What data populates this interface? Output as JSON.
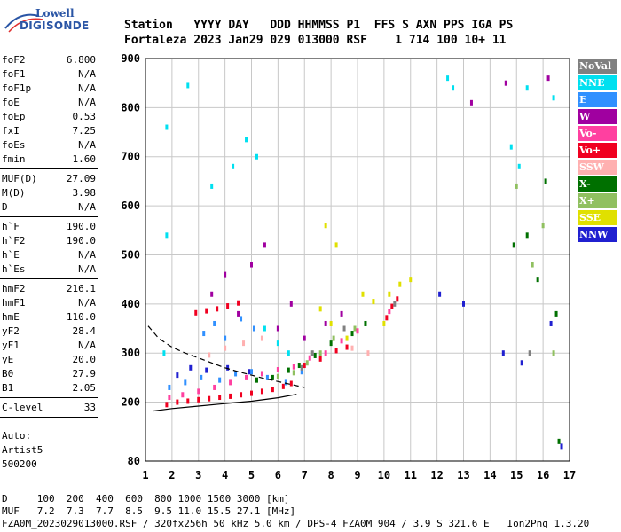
{
  "logo": {
    "line1": "Lowell",
    "line2": "DIGISONDE"
  },
  "header": {
    "line1": "Station   YYYY DAY   DDD HHMMSS P1  FFS S AXN PPS IGA PS",
    "line2": "Fortaleza 2023 Jan29 029 013000 RSF    1 714 100 10+ 11"
  },
  "params_groups": [
    [
      {
        "label": "foF2",
        "value": "6.800"
      },
      {
        "label": "foF1",
        "value": "N/A"
      },
      {
        "label": "foF1p",
        "value": "N/A"
      },
      {
        "label": "foE",
        "value": "N/A"
      },
      {
        "label": "foEp",
        "value": "0.53"
      },
      {
        "label": "fxI",
        "value": "7.25"
      },
      {
        "label": "foEs",
        "value": "N/A"
      },
      {
        "label": "fmin",
        "value": "1.60"
      }
    ],
    [
      {
        "label": "MUF(D)",
        "value": "27.09"
      },
      {
        "label": "M(D)",
        "value": "3.98"
      },
      {
        "label": "D",
        "value": "N/A"
      }
    ],
    [
      {
        "label": "h`F",
        "value": "190.0"
      },
      {
        "label": "h`F2",
        "value": "190.0"
      },
      {
        "label": "h`E",
        "value": "N/A"
      },
      {
        "label": "h`Es",
        "value": "N/A"
      }
    ],
    [
      {
        "label": "hmF2",
        "value": "216.1"
      },
      {
        "label": "hmF1",
        "value": "N/A"
      },
      {
        "label": "hmE",
        "value": "110.0"
      },
      {
        "label": "yF2",
        "value": "28.4"
      },
      {
        "label": "yF1",
        "value": "N/A"
      },
      {
        "label": "yE",
        "value": "20.0"
      },
      {
        "label": "B0",
        "value": "27.9"
      },
      {
        "label": "B1",
        "value": "2.05"
      }
    ],
    [
      {
        "label": "C-level",
        "value": "33"
      }
    ]
  ],
  "auto": {
    "line1": "Auto:",
    "line2": "Artist5",
    "line3": "500200"
  },
  "legend": [
    {
      "label": "NoVal",
      "color": "#808080"
    },
    {
      "label": "NNE",
      "color": "#00e0f0"
    },
    {
      "label": "E",
      "color": "#3090ff"
    },
    {
      "label": "W",
      "color": "#a000a0"
    },
    {
      "label": "Vo-",
      "color": "#ff40a0"
    },
    {
      "label": "Vo+",
      "color": "#f00020"
    },
    {
      "label": "SSW",
      "color": "#ffb0b0"
    },
    {
      "label": "X-",
      "color": "#007000"
    },
    {
      "label": "X+",
      "color": "#90c060"
    },
    {
      "label": "SSE",
      "color": "#e0e000"
    },
    {
      "label": "NNW",
      "color": "#2020d0"
    }
  ],
  "footer": {
    "line1": "D     100  200  400  600  800 1000 1500 3000 [km]",
    "line2": "MUF   7.2  7.3  7.7  8.5  9.5 11.0 15.5 27.1 [MHz]",
    "line3": "FZA0M_2023029013000.RSF / 320fx256h 50 kHz 5.0 km / DPS-4 FZA0M 904 / 3.9 S 321.6 E   Ion2Png 1.3.20"
  },
  "chart_data": {
    "type": "scatter",
    "title": "",
    "xlabel": "",
    "ylabel": "",
    "xlim": [
      1,
      17
    ],
    "ylim": [
      80,
      900
    ],
    "xticks": [
      1,
      2,
      3,
      4,
      5,
      6,
      7,
      8,
      9,
      10,
      11,
      12,
      13,
      14,
      15,
      16,
      17
    ],
    "yticks": [
      80,
      200,
      300,
      400,
      500,
      600,
      700,
      800,
      900
    ],
    "grid": true,
    "legend_position": "right",
    "series": [
      {
        "name": "Vo+",
        "color": "#f00020",
        "points": [
          [
            1.8,
            195
          ],
          [
            2.2,
            200
          ],
          [
            2.6,
            202
          ],
          [
            3.0,
            205
          ],
          [
            3.4,
            207
          ],
          [
            3.8,
            210
          ],
          [
            4.2,
            212
          ],
          [
            4.6,
            215
          ],
          [
            5.0,
            218
          ],
          [
            5.4,
            222
          ],
          [
            5.8,
            226
          ],
          [
            6.2,
            232
          ],
          [
            6.5,
            238
          ],
          [
            2.9,
            382
          ],
          [
            3.3,
            386
          ],
          [
            3.7,
            390
          ],
          [
            4.1,
            396
          ],
          [
            4.5,
            402
          ],
          [
            7.0,
            275
          ],
          [
            7.6,
            288
          ],
          [
            8.2,
            305
          ],
          [
            8.6,
            312
          ],
          [
            10.1,
            372
          ],
          [
            10.3,
            395
          ],
          [
            10.5,
            410
          ]
        ]
      },
      {
        "name": "Vo-",
        "color": "#ff40a0",
        "points": [
          [
            1.9,
            210
          ],
          [
            2.4,
            215
          ],
          [
            3.0,
            222
          ],
          [
            3.6,
            230
          ],
          [
            4.2,
            240
          ],
          [
            4.8,
            250
          ],
          [
            5.4,
            258
          ],
          [
            6.0,
            266
          ],
          [
            6.6,
            272
          ],
          [
            7.2,
            290
          ],
          [
            7.8,
            300
          ],
          [
            8.4,
            325
          ],
          [
            9.0,
            345
          ],
          [
            10.2,
            385
          ]
        ]
      },
      {
        "name": "E",
        "color": "#3090ff",
        "points": [
          [
            1.9,
            230
          ],
          [
            2.5,
            240
          ],
          [
            3.1,
            250
          ],
          [
            3.8,
            245
          ],
          [
            4.4,
            258
          ],
          [
            5.0,
            262
          ],
          [
            5.6,
            250
          ],
          [
            6.3,
            240
          ],
          [
            6.9,
            262
          ],
          [
            3.2,
            340
          ],
          [
            3.6,
            360
          ],
          [
            4.0,
            330
          ],
          [
            4.6,
            370
          ],
          [
            5.1,
            350
          ]
        ]
      },
      {
        "name": "NNE",
        "color": "#00e0f0",
        "points": [
          [
            1.7,
            300
          ],
          [
            1.8,
            540
          ],
          [
            1.8,
            760
          ],
          [
            2.6,
            845
          ],
          [
            3.5,
            640
          ],
          [
            4.3,
            680
          ],
          [
            4.8,
            735
          ],
          [
            5.2,
            700
          ],
          [
            5.5,
            350
          ],
          [
            6.0,
            320
          ],
          [
            6.4,
            300
          ],
          [
            12.4,
            860
          ],
          [
            12.6,
            840
          ],
          [
            14.8,
            720
          ],
          [
            15.1,
            680
          ],
          [
            15.4,
            840
          ],
          [
            16.4,
            820
          ]
        ]
      },
      {
        "name": "W",
        "color": "#a000a0",
        "points": [
          [
            3.5,
            420
          ],
          [
            4.0,
            460
          ],
          [
            4.5,
            380
          ],
          [
            5.0,
            480
          ],
          [
            5.5,
            520
          ],
          [
            6.0,
            350
          ],
          [
            6.5,
            400
          ],
          [
            7.0,
            330
          ],
          [
            7.8,
            360
          ],
          [
            8.4,
            380
          ],
          [
            13.3,
            810
          ],
          [
            14.6,
            850
          ],
          [
            16.2,
            860
          ]
        ]
      },
      {
        "name": "X-",
        "color": "#007000",
        "points": [
          [
            5.2,
            245
          ],
          [
            5.8,
            250
          ],
          [
            6.4,
            265
          ],
          [
            6.8,
            275
          ],
          [
            7.4,
            295
          ],
          [
            8.0,
            320
          ],
          [
            8.8,
            340
          ],
          [
            9.3,
            360
          ],
          [
            14.9,
            520
          ],
          [
            15.4,
            540
          ],
          [
            15.8,
            450
          ],
          [
            16.1,
            650
          ],
          [
            16.5,
            380
          ],
          [
            16.6,
            120
          ]
        ]
      },
      {
        "name": "X+",
        "color": "#90c060",
        "points": [
          [
            6.0,
            252
          ],
          [
            6.6,
            260
          ],
          [
            7.1,
            280
          ],
          [
            7.6,
            300
          ],
          [
            8.1,
            330
          ],
          [
            8.9,
            350
          ],
          [
            15.0,
            640
          ],
          [
            15.6,
            480
          ],
          [
            16.0,
            560
          ],
          [
            16.4,
            300
          ]
        ]
      },
      {
        "name": "SSE",
        "color": "#e0e000",
        "points": [
          [
            7.6,
            390
          ],
          [
            8.0,
            360
          ],
          [
            8.6,
            330
          ],
          [
            9.2,
            420
          ],
          [
            9.6,
            405
          ],
          [
            10.2,
            420
          ],
          [
            10.6,
            440
          ],
          [
            11.0,
            450
          ],
          [
            10.0,
            360
          ],
          [
            8.2,
            520
          ],
          [
            7.8,
            560
          ]
        ]
      },
      {
        "name": "NNW",
        "color": "#2020d0",
        "points": [
          [
            2.2,
            255
          ],
          [
            2.7,
            270
          ],
          [
            3.3,
            265
          ],
          [
            4.1,
            270
          ],
          [
            4.9,
            262
          ],
          [
            12.1,
            420
          ],
          [
            13.0,
            400
          ],
          [
            14.5,
            300
          ],
          [
            15.2,
            280
          ],
          [
            16.3,
            360
          ],
          [
            16.7,
            110
          ]
        ]
      },
      {
        "name": "SSW",
        "color": "#ffb0b0",
        "points": [
          [
            3.4,
            296
          ],
          [
            4.0,
            310
          ],
          [
            4.7,
            320
          ],
          [
            5.4,
            330
          ],
          [
            8.8,
            310
          ],
          [
            9.4,
            300
          ]
        ]
      },
      {
        "name": "NoVal",
        "color": "#808080",
        "points": [
          [
            6.9,
            270
          ],
          [
            7.3,
            300
          ],
          [
            8.5,
            350
          ],
          [
            10.4,
            400
          ],
          [
            15.5,
            300
          ]
        ]
      }
    ],
    "annotations": {
      "trace_solid": [
        [
          1.3,
          182
        ],
        [
          2.0,
          187
        ],
        [
          3.0,
          192
        ],
        [
          4.0,
          197
        ],
        [
          5.0,
          202
        ],
        [
          6.0,
          209
        ],
        [
          6.7,
          216
        ]
      ],
      "trace_dashed": [
        [
          1.1,
          355
        ],
        [
          1.5,
          330
        ],
        [
          2.0,
          312
        ],
        [
          2.5,
          300
        ],
        [
          3.0,
          290
        ],
        [
          3.5,
          280
        ],
        [
          4.0,
          270
        ],
        [
          4.5,
          262
        ],
        [
          5.0,
          255
        ],
        [
          5.5,
          248
        ],
        [
          6.0,
          242
        ],
        [
          6.5,
          236
        ],
        [
          7.0,
          230
        ]
      ]
    }
  }
}
